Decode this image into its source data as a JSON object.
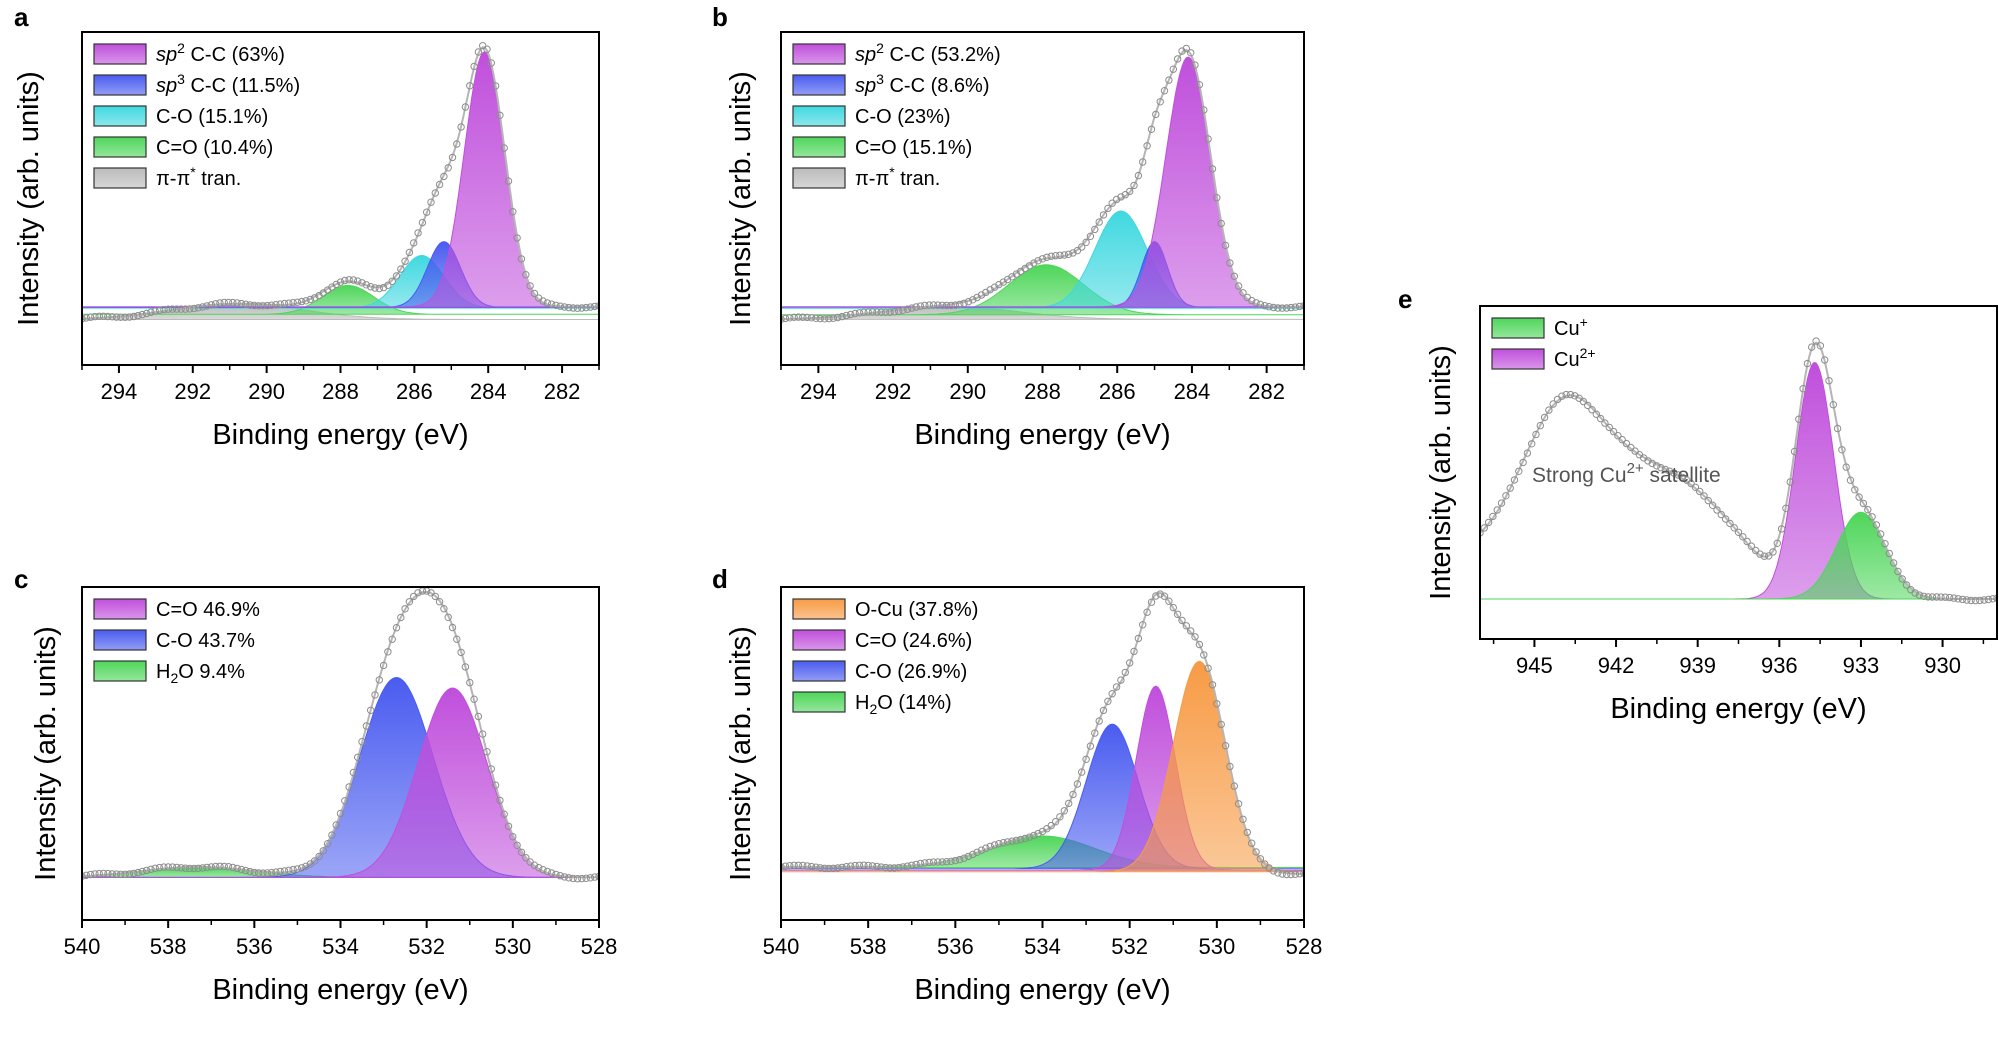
{
  "chart_data": [
    {
      "panel": "a",
      "type": "area",
      "xlabel": "Binding energy (eV)",
      "ylabel": "Intensity (arb. units)",
      "xlim": [
        295,
        281
      ],
      "xticks": [
        294,
        292,
        290,
        288,
        286,
        284,
        282
      ],
      "legend_position": "top-left",
      "components": [
        {
          "name": "sp2 C-C",
          "pct": "63%",
          "center": 284.1,
          "width": 0.55,
          "height": 0.97,
          "color": "#c04fdc",
          "label": [
            "sp",
            "2",
            " C-C (63%)"
          ]
        },
        {
          "name": "sp3 C-C",
          "pct": "11.5%",
          "center": 285.2,
          "width": 0.45,
          "height": 0.25,
          "color": "#4a5cf0",
          "label": [
            "sp",
            "3",
            " C-C (11.5%)"
          ]
        },
        {
          "name": "C-O",
          "pct": "15.1%",
          "center": 285.8,
          "width": 0.6,
          "height": 0.2,
          "color": "#3fd8e0",
          "label": [
            "",
            "",
            "C-O (15.1%)"
          ]
        },
        {
          "name": "C=O",
          "pct": "10.4%",
          "center": 287.8,
          "width": 0.7,
          "height": 0.11,
          "color": "#4ed65a",
          "label": [
            "",
            "",
            "C=O (10.4%)"
          ]
        },
        {
          "name": "π-π* tran.",
          "center": 290.8,
          "width": 1.8,
          "height": 0.06,
          "color": "#bbbbbb",
          "label": [
            "",
            "",
            "π-π",
            " tran."
          ]
        }
      ]
    },
    {
      "panel": "b",
      "type": "area",
      "xlabel": "Binding energy (eV)",
      "ylabel": "Intensity (arb. units)",
      "xlim": [
        295,
        281
      ],
      "xticks": [
        294,
        292,
        290,
        288,
        286,
        284,
        282
      ],
      "legend_position": "top-left",
      "components": [
        {
          "name": "sp2 C-C",
          "pct": "53.2%",
          "center": 284.1,
          "width": 0.6,
          "height": 0.95,
          "color": "#c04fdc",
          "label": [
            "sp",
            "2",
            " C-C (53.2%)"
          ]
        },
        {
          "name": "sp3 C-C",
          "pct": "8.6%",
          "center": 285.0,
          "width": 0.35,
          "height": 0.25,
          "color": "#4a5cf0",
          "label": [
            "sp",
            "3",
            " C-C (8.6%)"
          ]
        },
        {
          "name": "C-O",
          "pct": "23%",
          "center": 285.9,
          "width": 0.7,
          "height": 0.37,
          "color": "#3fd8e0",
          "label": [
            "",
            "",
            "C-O (23%)"
          ]
        },
        {
          "name": "C=O",
          "pct": "15.1%",
          "center": 287.9,
          "width": 1.0,
          "height": 0.19,
          "color": "#4ed65a",
          "label": [
            "",
            "",
            "C=O (15.1%)"
          ]
        },
        {
          "name": "π-π* tran.",
          "center": 290.5,
          "width": 1.8,
          "height": 0.05,
          "color": "#bbbbbb",
          "label": [
            "",
            "",
            "π-π",
            " tran."
          ]
        }
      ]
    },
    {
      "panel": "c",
      "type": "area",
      "xlabel": "Binding energy (eV)",
      "ylabel": "Intensity (arb. units)",
      "xlim": [
        540,
        528
      ],
      "xticks": [
        540,
        538,
        536,
        534,
        532,
        530,
        528
      ],
      "legend_position": "top-left",
      "components": [
        {
          "name": "C=O",
          "pct": "46.9%",
          "center": 531.4,
          "width": 0.8,
          "height": 0.72,
          "color": "#c04fdc",
          "label": [
            "",
            "",
            "C=O 46.9%"
          ]
        },
        {
          "name": "C-O",
          "pct": "43.7%",
          "center": 532.7,
          "width": 0.85,
          "height": 0.76,
          "color": "#4a5cf0",
          "label": [
            "",
            "",
            "C-O 43.7%"
          ]
        },
        {
          "name": "H2O",
          "pct": "9.4%",
          "center": 537.3,
          "width": 1.3,
          "height": 0.04,
          "color": "#4ed65a",
          "label": [
            "H",
            "2",
            "O 9.4%"
          ]
        }
      ]
    },
    {
      "panel": "d",
      "type": "area",
      "xlabel": "Binding energy (eV)",
      "ylabel": "Intensity (arb. units)",
      "xlim": [
        540,
        528
      ],
      "xticks": [
        540,
        538,
        536,
        534,
        532,
        530,
        528
      ],
      "legend_position": "top-left",
      "components": [
        {
          "name": "O-Cu",
          "pct": "37.8%",
          "center": 530.4,
          "width": 0.6,
          "height": 0.8,
          "color": "#f79b45",
          "label": [
            "",
            "",
            "O-Cu (37.8%)"
          ]
        },
        {
          "name": "C=O",
          "pct": "24.6%",
          "center": 531.4,
          "width": 0.45,
          "height": 0.7,
          "color": "#c04fdc",
          "label": [
            "",
            "",
            "C=O (24.6%)"
          ]
        },
        {
          "name": "C-O",
          "pct": "26.9%",
          "center": 532.4,
          "width": 0.6,
          "height": 0.55,
          "color": "#4a5cf0",
          "label": [
            "",
            "",
            "C-O (26.9%)"
          ]
        },
        {
          "name": "H2O",
          "pct": "14%",
          "center": 534.0,
          "width": 1.2,
          "height": 0.12,
          "color": "#4ed65a",
          "label": [
            "H",
            "2",
            "O (14%)"
          ]
        }
      ]
    },
    {
      "panel": "e",
      "type": "area",
      "xlabel": "Binding energy (eV)",
      "ylabel": "Intensity (arb. units)",
      "xlim": [
        947,
        928
      ],
      "xticks": [
        945,
        942,
        939,
        936,
        933,
        930
      ],
      "legend_position": "top-left",
      "annotation": [
        "Strong Cu",
        "2+",
        " satellite"
      ],
      "components": [
        {
          "name": "Cu+",
          "center": 933.0,
          "width": 0.9,
          "height": 0.33,
          "color": "#4ed65a",
          "label": [
            "Cu",
            "+",
            ""
          ]
        },
        {
          "name": "Cu2+",
          "center": 934.7,
          "width": 0.7,
          "height": 0.9,
          "color": "#c04fdc",
          "label": [
            "Cu",
            "2+",
            ""
          ]
        }
      ]
    }
  ]
}
